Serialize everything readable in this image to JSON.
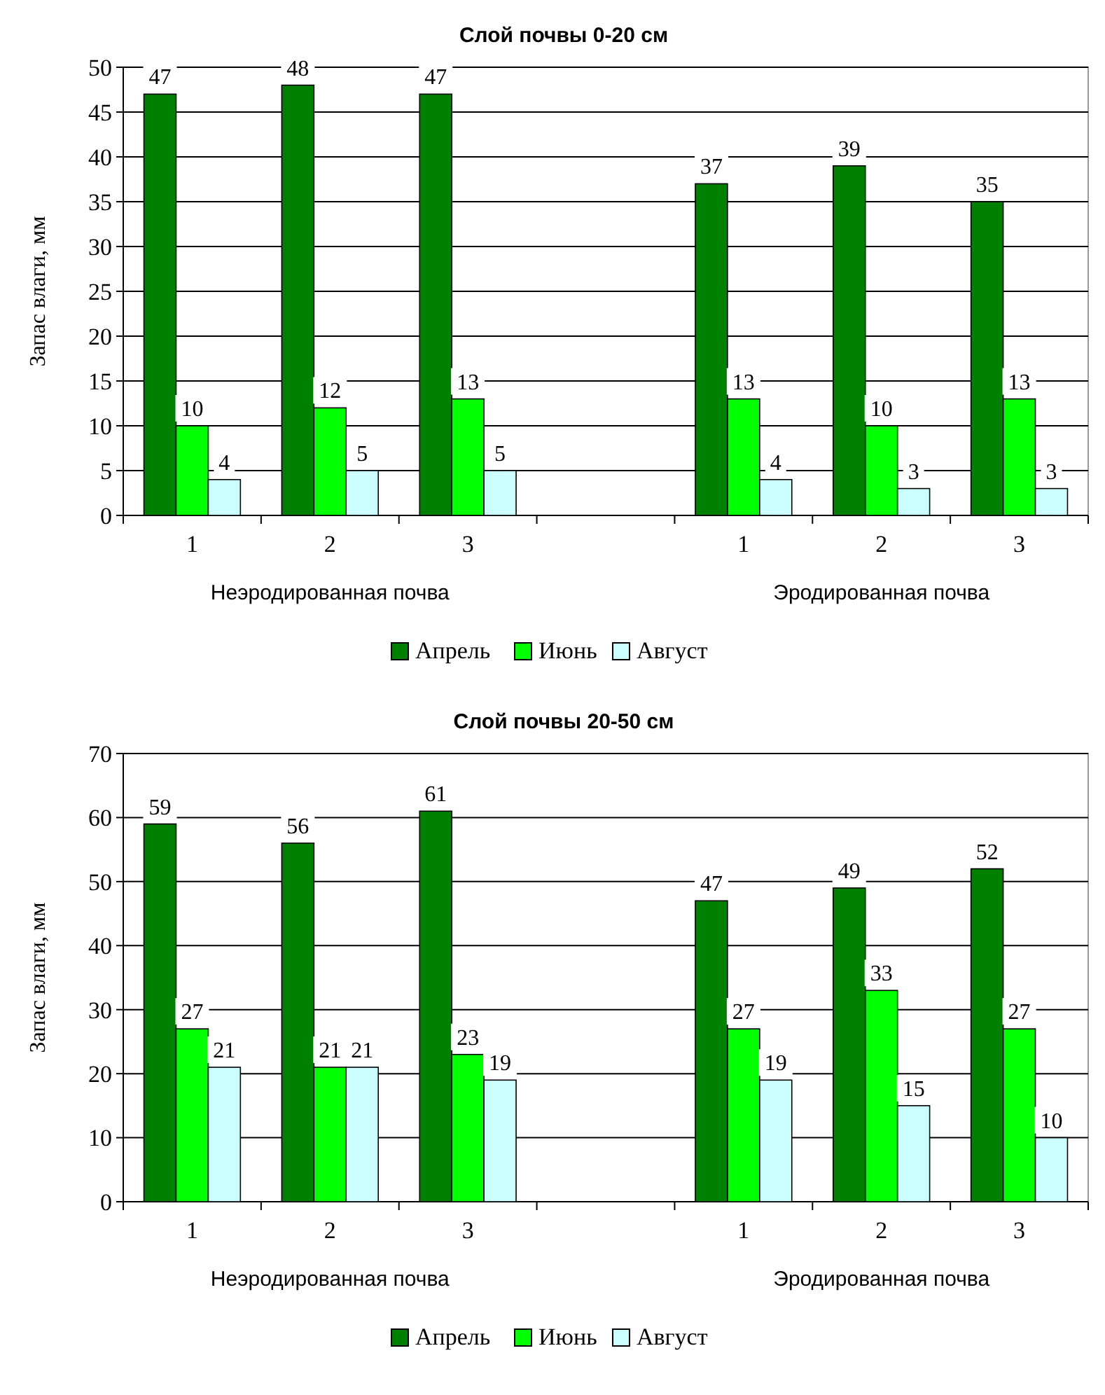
{
  "chart_data": [
    {
      "type": "bar",
      "title": "Слой почвы 0-20 см",
      "ylabel": "Запас влаги, мм",
      "categories": [
        "1",
        "2",
        "3",
        null,
        "1",
        "2",
        "3"
      ],
      "series": [
        {
          "name": "Апрель",
          "color": "#008000",
          "values": [
            47,
            48,
            47,
            null,
            37,
            39,
            35
          ]
        },
        {
          "name": "Июнь",
          "color": "#00ff00",
          "values": [
            10,
            12,
            13,
            null,
            13,
            10,
            13
          ]
        },
        {
          "name": "Август",
          "color": "#ccffff",
          "values": [
            4,
            5,
            5,
            null,
            4,
            3,
            3
          ]
        }
      ],
      "ylim": [
        0,
        50
      ],
      "yticks": [
        0,
        5,
        10,
        15,
        20,
        25,
        30,
        35,
        40,
        45,
        50
      ],
      "grid": "y",
      "legend": "bottom",
      "data_labels": true,
      "annotations": [
        "Неэродированная почва",
        "Эродированная почва"
      ]
    },
    {
      "type": "bar",
      "title": "Слой почвы 20-50 см",
      "ylabel": "Запас влаги, мм",
      "categories": [
        "1",
        "2",
        "3",
        null,
        "1",
        "2",
        "3"
      ],
      "series": [
        {
          "name": "Апрель",
          "color": "#008000",
          "values": [
            59,
            56,
            61,
            null,
            47,
            49,
            52
          ]
        },
        {
          "name": "Июнь",
          "color": "#00ff00",
          "values": [
            27,
            21,
            23,
            null,
            27,
            33,
            27
          ]
        },
        {
          "name": "Август",
          "color": "#ccffff",
          "values": [
            21,
            21,
            19,
            null,
            19,
            15,
            10
          ]
        }
      ],
      "ylim": [
        0,
        70
      ],
      "yticks": [
        0,
        10,
        20,
        30,
        40,
        50,
        60,
        70
      ],
      "grid": "y",
      "legend": "bottom",
      "data_labels": true,
      "annotations": [
        "Неэродированная почва",
        "Эродированная почва"
      ]
    }
  ]
}
